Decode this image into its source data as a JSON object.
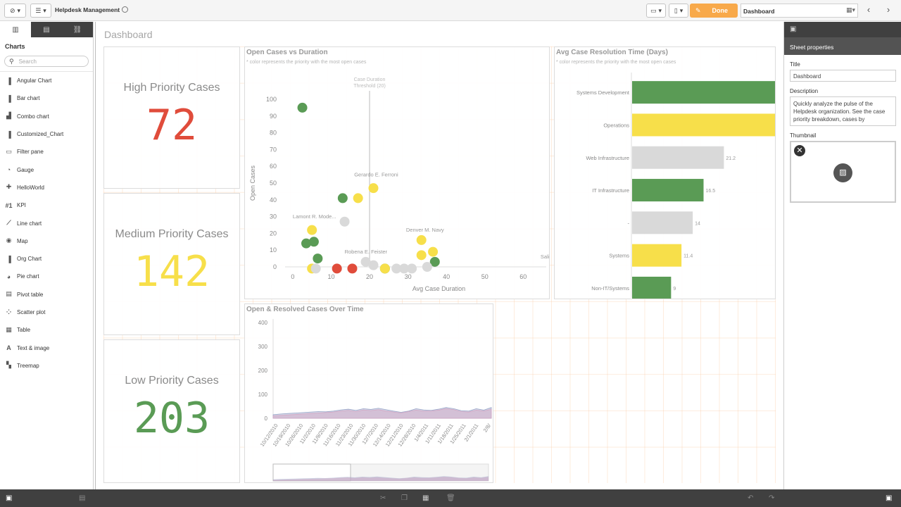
{
  "app": {
    "title": "Helpdesk Management",
    "mode_label": "Done",
    "sheet_name": "Dashboard"
  },
  "left_panel": {
    "heading": "Charts",
    "search_placeholder": "Search",
    "items": [
      {
        "label": "Angular Chart",
        "icon": "bar-chart-icon"
      },
      {
        "label": "Bar chart",
        "icon": "bar-chart-icon"
      },
      {
        "label": "Combo chart",
        "icon": "combo-chart-icon"
      },
      {
        "label": "Customized_Chart",
        "icon": "bar-chart-icon"
      },
      {
        "label": "Filter pane",
        "icon": "filter-icon"
      },
      {
        "label": "Gauge",
        "icon": "gauge-icon"
      },
      {
        "label": "HelloWorld",
        "icon": "puzzle-icon"
      },
      {
        "label": "KPI",
        "icon": "kpi-icon"
      },
      {
        "label": "Line chart",
        "icon": "line-chart-icon"
      },
      {
        "label": "Map",
        "icon": "map-icon"
      },
      {
        "label": "Org Chart",
        "icon": "bar-chart-icon"
      },
      {
        "label": "Pie chart",
        "icon": "pie-chart-icon"
      },
      {
        "label": "Pivot table",
        "icon": "pivot-icon"
      },
      {
        "label": "Scatter plot",
        "icon": "scatter-icon"
      },
      {
        "label": "Table",
        "icon": "table-icon"
      },
      {
        "label": "Text & image",
        "icon": "text-icon"
      },
      {
        "label": "Treemap",
        "icon": "treemap-icon"
      }
    ]
  },
  "sheet": {
    "title": "Dashboard"
  },
  "kpis": [
    {
      "label": "High Priority Cases",
      "value": "72",
      "color": "#e04c3b"
    },
    {
      "label": "Medium Priority Cases",
      "value": "142",
      "color": "#f7df4a"
    },
    {
      "label": "Low Priority Cases",
      "value": "203",
      "color": "#5a9b55"
    }
  ],
  "chart_data": [
    {
      "type": "scatter",
      "title": "Open Cases vs Duration",
      "subtitle": "* color represents the priority with the most open cases",
      "xlabel": "Avg Case Duration",
      "ylabel": "Open Cases",
      "xlim": [
        -2,
        66
      ],
      "ylim": [
        0,
        100
      ],
      "xticks": [
        0,
        10,
        20,
        30,
        40,
        50,
        60
      ],
      "yticks": [
        0,
        10,
        20,
        30,
        40,
        50,
        60,
        70,
        80,
        90,
        100
      ],
      "reference_line": {
        "x": 20,
        "label_lines": [
          "Case Duration",
          "Threshold (20)"
        ]
      },
      "colors": {
        "high": "#e04c3b",
        "medium": "#f7df4a",
        "low": "#5a9b55",
        "none": "#d9d9d9"
      },
      "points": [
        {
          "x": 2.5,
          "y": 95,
          "c": "low"
        },
        {
          "x": 13,
          "y": 41,
          "c": "low"
        },
        {
          "x": 17,
          "y": 41,
          "c": "medium"
        },
        {
          "x": 21,
          "y": 47,
          "c": "medium"
        },
        {
          "x": 13.5,
          "y": 27,
          "c": "none"
        },
        {
          "x": 5,
          "y": 22,
          "c": "medium"
        },
        {
          "x": 3.5,
          "y": 14,
          "c": "low"
        },
        {
          "x": 5.5,
          "y": 15,
          "c": "low"
        },
        {
          "x": 6.5,
          "y": 5,
          "c": "low"
        },
        {
          "x": 5,
          "y": -1,
          "c": "medium"
        },
        {
          "x": 6,
          "y": -1,
          "c": "none"
        },
        {
          "x": 11.5,
          "y": -1,
          "c": "high"
        },
        {
          "x": 15.5,
          "y": -1,
          "c": "high"
        },
        {
          "x": 19,
          "y": 3,
          "c": "none"
        },
        {
          "x": 21,
          "y": 1,
          "c": "none"
        },
        {
          "x": 24,
          "y": -1,
          "c": "low"
        },
        {
          "x": 24,
          "y": -1,
          "c": "medium"
        },
        {
          "x": 27,
          "y": -1,
          "c": "none"
        },
        {
          "x": 29,
          "y": -1,
          "c": "none"
        },
        {
          "x": 31,
          "y": -1,
          "c": "none"
        },
        {
          "x": 33.5,
          "y": 16,
          "c": "medium"
        },
        {
          "x": 33.5,
          "y": 7,
          "c": "medium"
        },
        {
          "x": 36.5,
          "y": 9,
          "c": "medium"
        },
        {
          "x": 37,
          "y": 3,
          "c": "low"
        },
        {
          "x": 35,
          "y": 0,
          "c": "none"
        }
      ],
      "labels": [
        {
          "text": "Gerardo E. Ferroni",
          "x": 16,
          "y": 54
        },
        {
          "text": "Lamont R. Mode...",
          "x": 0,
          "y": 29
        },
        {
          "text": "Denver M. Navy",
          "x": 29.5,
          "y": 21
        },
        {
          "text": "Robena E. Feister",
          "x": 13.5,
          "y": 8
        },
        {
          "text": "Sali",
          "x": 64.5,
          "y": 5
        }
      ]
    },
    {
      "type": "bar",
      "orientation": "horizontal",
      "title": "Avg Case Resolution Time (Days)",
      "subtitle": "* color represents the priority with the most open cases",
      "max": 33,
      "categories": [
        "Systems Development",
        "Operations",
        "Web Infrastructure",
        "IT Infrastructure",
        "-",
        "Systems",
        "Non-IT/Systems"
      ],
      "values": [
        33,
        33,
        21.2,
        16.5,
        14,
        11.4,
        9
      ],
      "value_labels": [
        "",
        "",
        "21.2",
        "16.5",
        "14",
        "11.4",
        "9"
      ],
      "colors": [
        "#5a9b55",
        "#f7df4a",
        "#d9d9d9",
        "#5a9b55",
        "#d9d9d9",
        "#f7df4a",
        "#5a9b55"
      ]
    },
    {
      "type": "area",
      "title": "Open & Resolved Cases Over Time",
      "ylim": [
        0,
        400
      ],
      "yticks": [
        0,
        100,
        200,
        300,
        400
      ],
      "x_labels": [
        "10/12/2010",
        "10/19/2010",
        "10/26/2010",
        "11/2/2010",
        "11/9/2010",
        "11/16/2010",
        "11/23/2010",
        "11/30/2010",
        "12/7/2010",
        "12/14/2010",
        "12/21/2010",
        "12/28/2010",
        "1/4/2011",
        "1/11/2011",
        "1/18/2011",
        "1/25/2011",
        "2/1/2011",
        "2/8/"
      ],
      "series": [
        {
          "color": "#9aa5c8",
          "values": [
            15,
            18,
            20,
            22,
            24,
            26,
            28,
            27,
            30,
            35,
            38,
            33,
            40,
            37,
            42,
            36,
            30,
            25,
            30,
            40,
            35,
            33,
            38,
            45,
            40,
            32,
            30,
            40,
            34,
            45
          ]
        },
        {
          "color": "#d4a7c4",
          "values": [
            10,
            12,
            14,
            16,
            18,
            20,
            22,
            24,
            26,
            30,
            33,
            28,
            35,
            32,
            36,
            30,
            26,
            22,
            28,
            34,
            30,
            30,
            34,
            40,
            36,
            28,
            26,
            34,
            30,
            38
          ]
        }
      ]
    }
  ],
  "right_panel": {
    "header": "Sheet properties",
    "title_label": "Title",
    "title_value": "Dashboard",
    "description_label": "Description",
    "description_value": "Quickly analyze the pulse of the Helpdesk organization. See the case priority breakdown, cases by",
    "thumbnail_label": "Thumbnail"
  }
}
